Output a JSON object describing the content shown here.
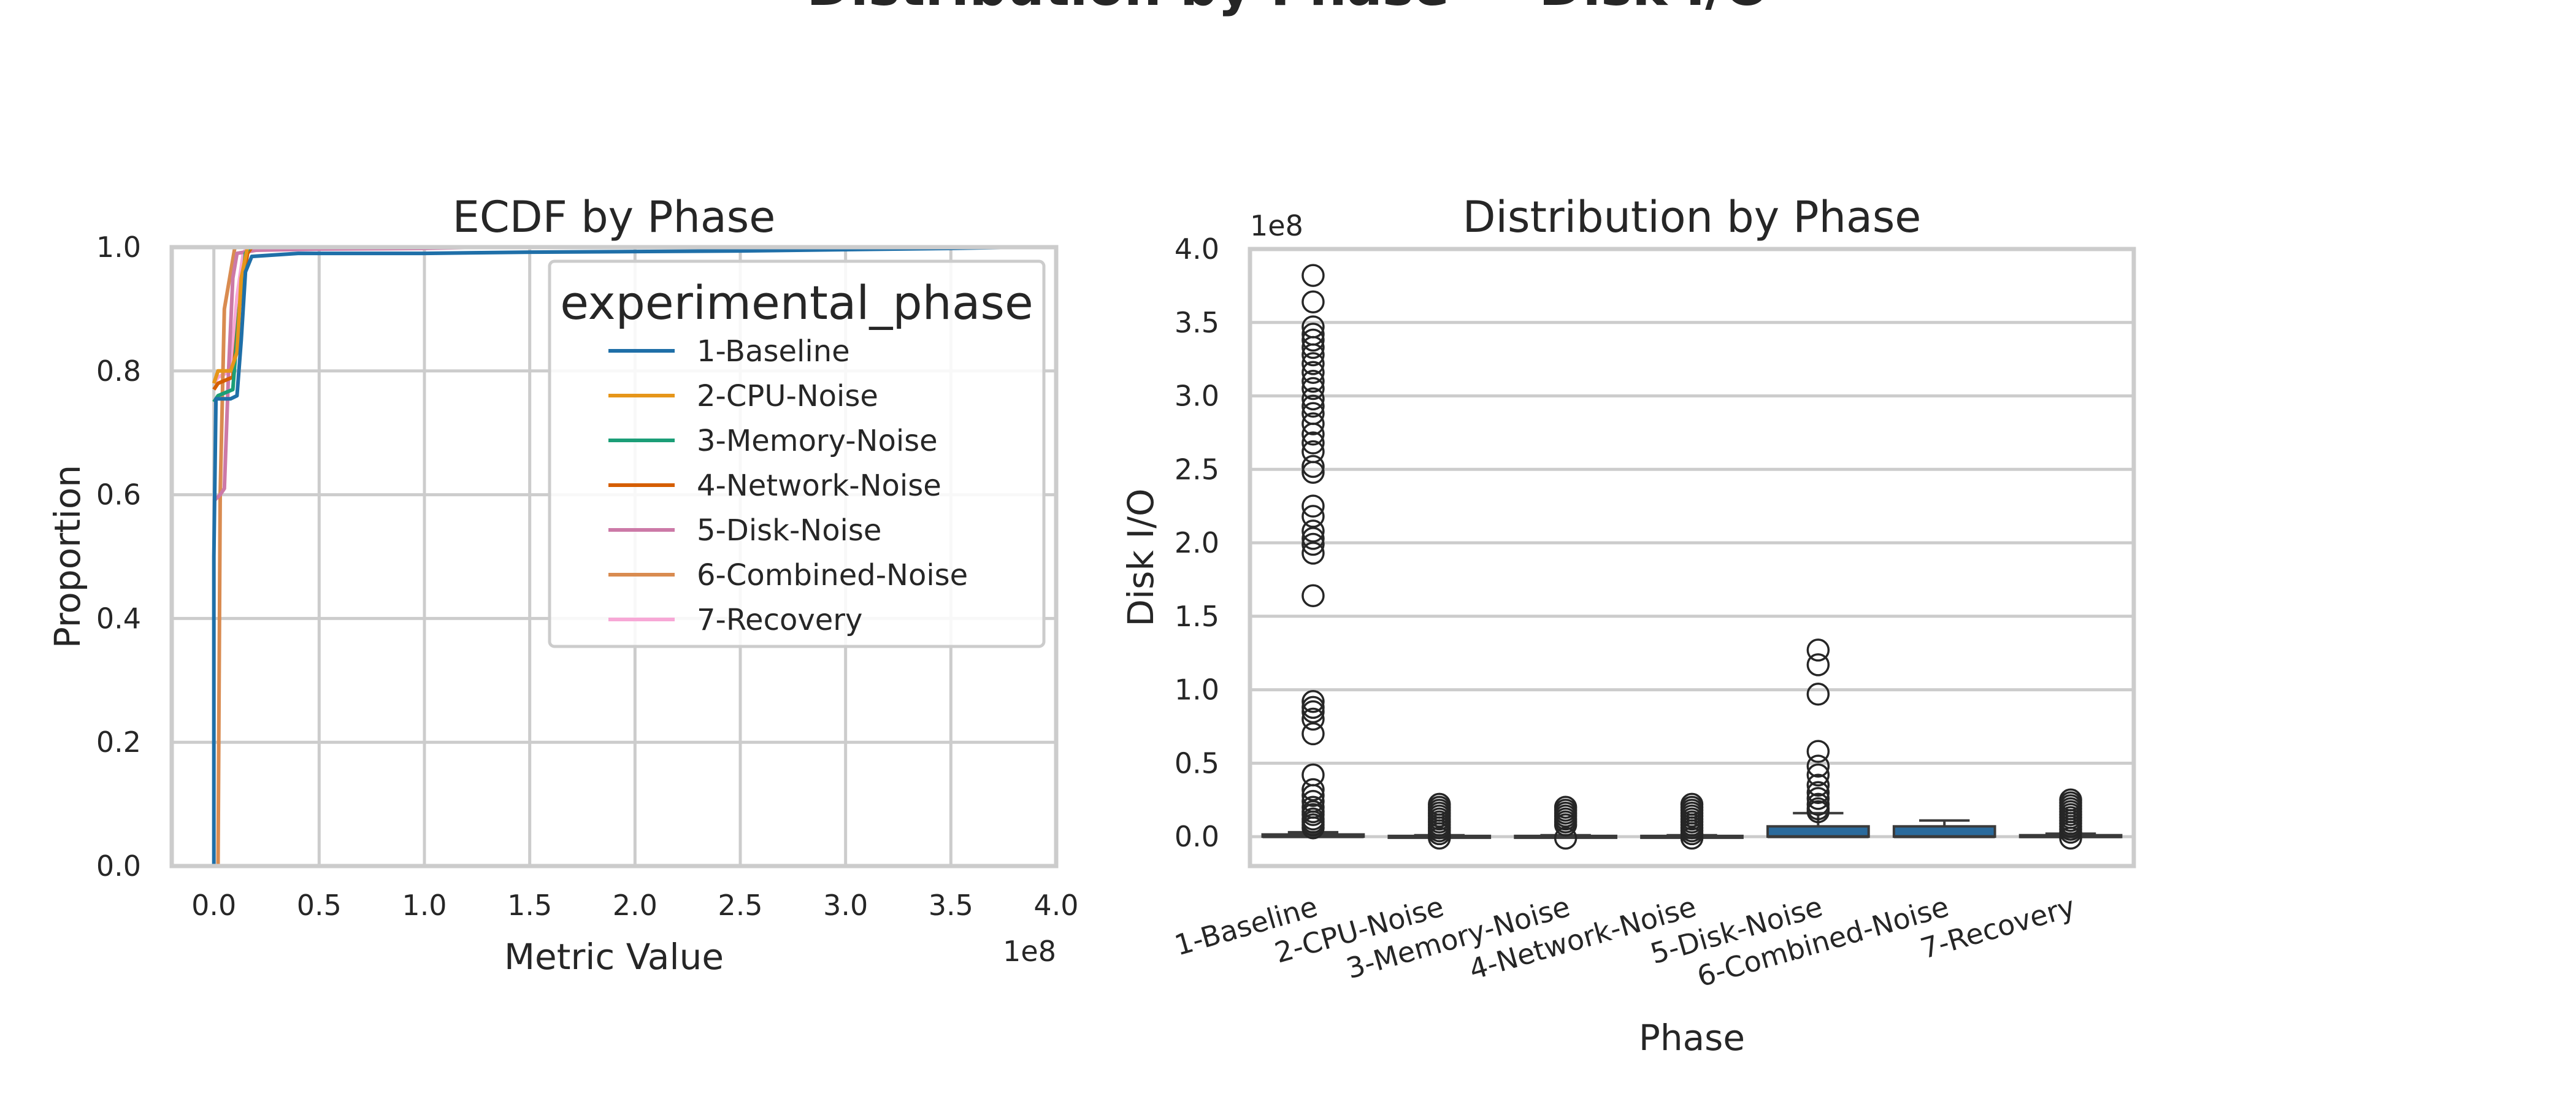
{
  "figure": {
    "suptitle": "Distribution by Phase — Disk I/O"
  },
  "colors": {
    "1-Baseline": "#1f6fa8",
    "2-CPU-Noise": "#e6961a",
    "3-Memory-Noise": "#1b9e77",
    "4-Network-Noise": "#d55e00",
    "5-Disk-Noise": "#cc79a7",
    "6-Combined-Noise": "#d98b50",
    "7-Recovery": "#f7a8d6",
    "box_fill": "#2a6a9c",
    "grid": "#cccccc",
    "text": "#262626"
  },
  "chart_data": [
    {
      "type": "line",
      "subtype": "ecdf",
      "title": "ECDF by Phase",
      "xlabel": "Metric Value",
      "ylabel": "Proportion",
      "x_offset_label": "1e8",
      "xlim": [
        -0.2,
        4.0
      ],
      "ylim": [
        0.0,
        1.0
      ],
      "x_ticks": [
        "0.0",
        "0.5",
        "1.0",
        "1.5",
        "2.0",
        "2.5",
        "3.0",
        "3.5",
        "4.0"
      ],
      "y_ticks": [
        "0.0",
        "0.2",
        "0.4",
        "0.6",
        "0.8",
        "1.0"
      ],
      "grid": true,
      "legend": {
        "title": "experimental_phase",
        "placement": "top-right",
        "entries": [
          "1-Baseline",
          "2-CPU-Noise",
          "3-Memory-Noise",
          "4-Network-Noise",
          "5-Disk-Noise",
          "6-Combined-Noise",
          "7-Recovery"
        ]
      },
      "series": [
        {
          "name": "1-Baseline",
          "points": [
            [
              0.0,
              0.0
            ],
            [
              0.0,
              0.5
            ],
            [
              0.01,
              0.755
            ],
            [
              0.08,
              0.755
            ],
            [
              0.11,
              0.76
            ],
            [
              0.13,
              0.85
            ],
            [
              0.15,
              0.96
            ],
            [
              0.18,
              0.985
            ],
            [
              0.4,
              0.99
            ],
            [
              1.0,
              0.99
            ],
            [
              1.5,
              0.992
            ],
            [
              2.0,
              0.993
            ],
            [
              2.5,
              0.994
            ],
            [
              3.0,
              0.996
            ],
            [
              3.5,
              0.998
            ],
            [
              3.82,
              1.0
            ]
          ]
        },
        {
          "name": "2-CPU-Noise",
          "points": [
            [
              0.0,
              0.78
            ],
            [
              0.02,
              0.8
            ],
            [
              0.08,
              0.8
            ],
            [
              0.11,
              0.83
            ],
            [
              0.13,
              0.95
            ],
            [
              0.16,
              1.0
            ]
          ]
        },
        {
          "name": "3-Memory-Noise",
          "points": [
            [
              0.0,
              0.75
            ],
            [
              0.02,
              0.76
            ],
            [
              0.09,
              0.77
            ],
            [
              0.12,
              0.9
            ],
            [
              0.15,
              0.99
            ],
            [
              0.17,
              1.0
            ]
          ]
        },
        {
          "name": "4-Network-Noise",
          "points": [
            [
              0.0,
              0.77
            ],
            [
              0.02,
              0.78
            ],
            [
              0.09,
              0.79
            ],
            [
              0.12,
              0.9
            ],
            [
              0.16,
              0.99
            ],
            [
              0.18,
              1.0
            ]
          ]
        },
        {
          "name": "5-Disk-Noise",
          "points": [
            [
              0.0,
              0.59
            ],
            [
              0.03,
              0.6
            ],
            [
              0.05,
              0.61
            ],
            [
              0.07,
              0.8
            ],
            [
              0.09,
              0.95
            ],
            [
              0.11,
              0.99
            ],
            [
              0.2,
              0.995
            ],
            [
              0.5,
              0.997
            ],
            [
              1.0,
              0.998
            ],
            [
              1.25,
              1.0
            ]
          ]
        },
        {
          "name": "6-Combined-Noise",
          "points": [
            [
              0.02,
              0.0
            ],
            [
              0.03,
              0.6
            ],
            [
              0.05,
              0.9
            ],
            [
              0.1,
              1.0
            ]
          ]
        },
        {
          "name": "7-Recovery",
          "points": [
            [
              0.0,
              0.78
            ],
            [
              0.02,
              0.79
            ],
            [
              0.08,
              0.8
            ],
            [
              0.11,
              0.92
            ],
            [
              0.14,
              0.99
            ],
            [
              0.16,
              1.0
            ]
          ]
        }
      ]
    },
    {
      "type": "box",
      "title": "Distribution by Phase",
      "xlabel": "Phase",
      "ylabel": "Disk I/O",
      "y_offset_label": "1e8",
      "ylim": [
        -0.2,
        4.0
      ],
      "y_ticks": [
        "0.0",
        "0.5",
        "1.0",
        "1.5",
        "2.0",
        "2.5",
        "3.0",
        "3.5",
        "4.0"
      ],
      "grid": true,
      "categories": [
        "1-Baseline",
        "2-CPU-Noise",
        "3-Memory-Noise",
        "4-Network-Noise",
        "5-Disk-Noise",
        "6-Combined-Noise",
        "7-Recovery"
      ],
      "boxes": [
        {
          "q1": 0.0,
          "median": 0.0,
          "q3": 0.015,
          "whisker_low": 0.0,
          "whisker_high": 0.03,
          "outliers": [
            3.82,
            3.64,
            3.47,
            3.42,
            3.38,
            3.33,
            3.28,
            3.22,
            3.16,
            3.1,
            3.05,
            2.98,
            2.93,
            2.88,
            2.81,
            2.74,
            2.68,
            2.62,
            2.52,
            2.48,
            2.25,
            2.18,
            2.08,
            2.03,
            1.99,
            1.93,
            1.64,
            0.92,
            0.88,
            0.85,
            0.8,
            0.7,
            0.42,
            0.32,
            0.28,
            0.24,
            0.2,
            0.17,
            0.15,
            0.12,
            0.1,
            0.08,
            0.06
          ]
        },
        {
          "q1": 0.0,
          "median": 0.0,
          "q3": 0.005,
          "whisker_low": 0.0,
          "whisker_high": 0.01,
          "outliers": [
            0.22,
            0.2,
            0.18,
            0.16,
            0.14,
            0.12,
            0.1,
            0.08,
            0.06,
            0.04,
            0.02,
            -0.01
          ]
        },
        {
          "q1": 0.0,
          "median": 0.0,
          "q3": 0.005,
          "whisker_low": 0.0,
          "whisker_high": 0.01,
          "outliers": [
            0.2,
            0.18,
            0.16,
            0.14,
            0.12,
            0.1,
            0.08,
            -0.01
          ]
        },
        {
          "q1": 0.0,
          "median": 0.0,
          "q3": 0.005,
          "whisker_low": 0.0,
          "whisker_high": 0.01,
          "outliers": [
            0.22,
            0.2,
            0.18,
            0.16,
            0.14,
            0.12,
            0.1,
            0.08,
            0.06,
            0.04,
            0.02,
            -0.01
          ]
        },
        {
          "q1": 0.0,
          "median": 0.0,
          "q3": 0.07,
          "whisker_low": 0.0,
          "whisker_high": 0.16,
          "outliers": [
            1.27,
            1.17,
            0.97,
            0.58,
            0.48,
            0.42,
            0.35,
            0.3,
            0.26,
            0.22,
            0.19,
            0.17
          ]
        },
        {
          "q1": 0.0,
          "median": 0.0,
          "q3": 0.07,
          "whisker_low": 0.0,
          "whisker_high": 0.11,
          "outliers": []
        },
        {
          "q1": 0.0,
          "median": 0.0,
          "q3": 0.01,
          "whisker_low": 0.0,
          "whisker_high": 0.02,
          "outliers": [
            0.25,
            0.23,
            0.21,
            0.19,
            0.17,
            0.15,
            0.13,
            0.11,
            0.09,
            0.07,
            0.05,
            0.03,
            -0.01
          ]
        }
      ]
    }
  ]
}
